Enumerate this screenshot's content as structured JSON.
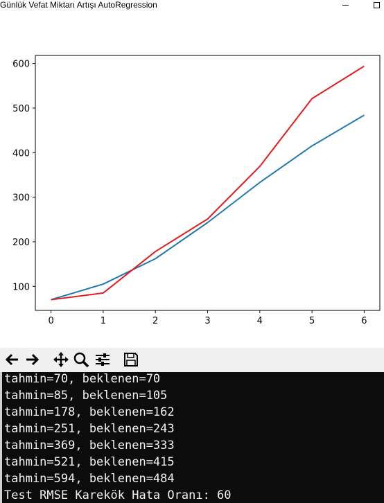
{
  "window": {
    "title": "Günlük Vefat Miktarı Artışı AutoRegression"
  },
  "chart_data": {
    "type": "line",
    "x": [
      0,
      1,
      2,
      3,
      4,
      5,
      6
    ],
    "series": [
      {
        "values": [
          70,
          105,
          162,
          243,
          333,
          415,
          484
        ],
        "color": "#1f77b4"
      },
      {
        "values": [
          70,
          85,
          178,
          251,
          369,
          521,
          594
        ],
        "color": "#e41a1c"
      }
    ],
    "xlim": [
      -0.3,
      6.3
    ],
    "ylim": [
      46,
      618
    ],
    "x_ticks": [
      0,
      1,
      2,
      3,
      4,
      5,
      6
    ],
    "y_ticks": [
      100,
      200,
      300,
      400,
      500,
      600
    ],
    "grid": false
  },
  "toolbar": {
    "icons": [
      "back-arrow-icon",
      "forward-arrow-icon",
      "pan-move-icon",
      "zoom-magnifier-icon",
      "configure-subplots-icon",
      "save-floppy-icon"
    ]
  },
  "console": {
    "lines": [
      "tahmin=70, beklenen=70",
      "tahmin=85, beklenen=105",
      "tahmin=178, beklenen=162",
      "tahmin=251, beklenen=243",
      "tahmin=369, beklenen=333",
      "tahmin=521, beklenen=415",
      "tahmin=594, beklenen=484",
      "Test RMSE Karekök Hata Oranı: 60"
    ]
  }
}
